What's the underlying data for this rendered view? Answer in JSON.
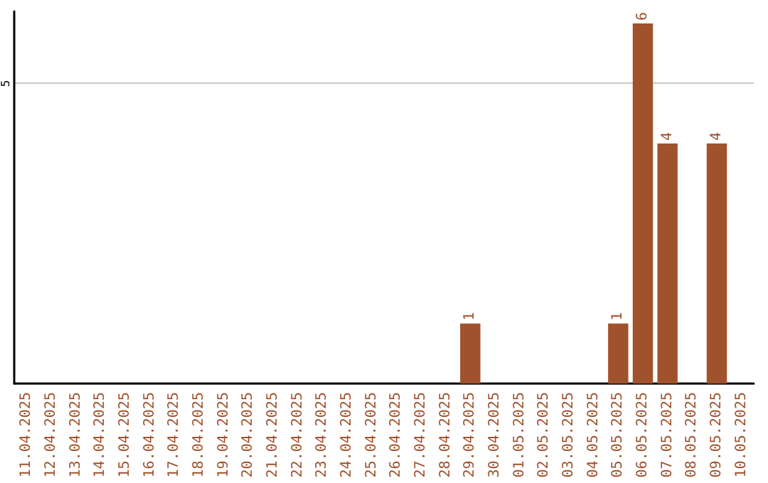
{
  "chart_data": {
    "type": "bar",
    "categories": [
      "11.04.2025",
      "12.04.2025",
      "13.04.2025",
      "14.04.2025",
      "15.04.2025",
      "16.04.2025",
      "17.04.2025",
      "18.04.2025",
      "19.04.2025",
      "20.04.2025",
      "21.04.2025",
      "22.04.2025",
      "23.04.2025",
      "24.04.2025",
      "25.04.2025",
      "26.04.2025",
      "27.04.2025",
      "28.04.2025",
      "29.04.2025",
      "30.04.2025",
      "01.05.2025",
      "02.05.2025",
      "03.05.2025",
      "04.05.2025",
      "05.05.2025",
      "06.05.2025",
      "07.05.2025",
      "08.05.2025",
      "09.05.2025",
      "10.05.2025"
    ],
    "values": [
      null,
      null,
      null,
      null,
      null,
      null,
      null,
      null,
      null,
      null,
      null,
      null,
      null,
      null,
      null,
      null,
      null,
      null,
      1,
      null,
      null,
      null,
      null,
      null,
      1,
      6,
      4,
      null,
      4,
      null
    ],
    "value_labels": [
      null,
      null,
      null,
      null,
      null,
      null,
      null,
      null,
      null,
      null,
      null,
      null,
      null,
      null,
      null,
      null,
      null,
      null,
      "1",
      null,
      null,
      null,
      null,
      null,
      "1",
      "6",
      "4",
      null,
      "4",
      null
    ],
    "color": "#a0522d",
    "ylim": [
      0,
      6.2
    ],
    "yticks": [
      5
    ],
    "grid": "y"
  }
}
